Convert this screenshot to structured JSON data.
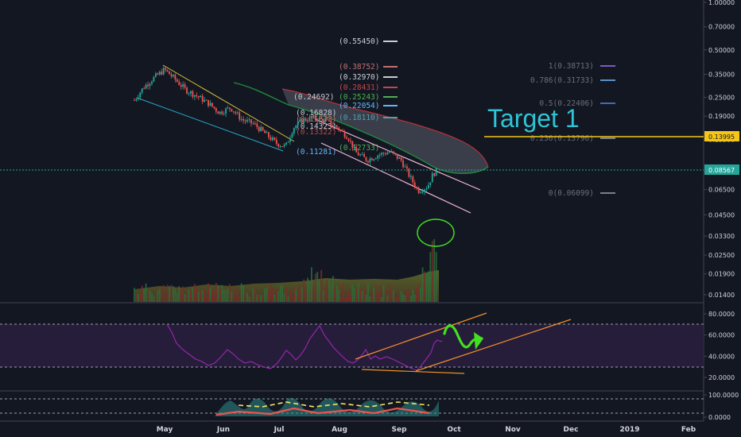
{
  "chart_data": [
    {
      "type": "candlestick",
      "title": "",
      "ylabel": "",
      "yscale": "log",
      "ylim": [
        0.0135,
        1.0
      ],
      "y_ticks": [
        "1.00000",
        "0.70000",
        "0.50000",
        "0.35000",
        "0.25000",
        "0.19000",
        "0.13500",
        "0.08567",
        "0.06500",
        "0.04500",
        "0.03300",
        "0.02500",
        "0.01900",
        "0.01400"
      ],
      "x_ticks": [
        "May",
        "Jun",
        "Jul",
        "Aug",
        "Sep",
        "Oct",
        "Nov",
        "Dec",
        "2019",
        "Feb"
      ],
      "price_path": [
        [
          "2018-04-15",
          0.24
        ],
        [
          "2018-04-20",
          0.29
        ],
        [
          "2018-04-25",
          0.33
        ],
        [
          "2018-05-01",
          0.375
        ],
        [
          "2018-05-06",
          0.33
        ],
        [
          "2018-05-12",
          0.28
        ],
        [
          "2018-05-18",
          0.255
        ],
        [
          "2018-05-24",
          0.23
        ],
        [
          "2018-05-30",
          0.2
        ],
        [
          "2018-06-05",
          0.215
        ],
        [
          "2018-06-11",
          0.18
        ],
        [
          "2018-06-17",
          0.17
        ],
        [
          "2018-06-23",
          0.148
        ],
        [
          "2018-06-29",
          0.128
        ],
        [
          "2018-07-04",
          0.122
        ],
        [
          "2018-07-08",
          0.16
        ],
        [
          "2018-07-13",
          0.18
        ],
        [
          "2018-07-19",
          0.185
        ],
        [
          "2018-07-25",
          0.178
        ],
        [
          "2018-07-31",
          0.162
        ],
        [
          "2018-08-06",
          0.14
        ],
        [
          "2018-08-10",
          0.112
        ],
        [
          "2018-08-16",
          0.1
        ],
        [
          "2018-08-22",
          0.108
        ],
        [
          "2018-08-28",
          0.113
        ],
        [
          "2018-09-03",
          0.1
        ],
        [
          "2018-09-08",
          0.077
        ],
        [
          "2018-09-12",
          0.064
        ],
        [
          "2018-09-17",
          0.068
        ],
        [
          "2018-09-20",
          0.082
        ],
        [
          "2018-09-22",
          0.0857
        ]
      ],
      "last_price": "0.08567",
      "target_price": "0.13995",
      "fib_left": [
        "(0.55450)",
        "(0.38752)",
        "(0.32970)",
        "(0.28431)",
        "(0.25243)",
        "(0.24692)",
        "(0.22054)",
        "(0.18110)",
        "(0.16828)",
        "(0.15833)",
        "(0.14323)",
        "(0.13322)",
        "(0.12733)",
        "(0.11281)"
      ],
      "fib_right": [
        "1(0.38713)",
        "0.786(0.31733)",
        "0.5(0.22406)",
        "0.236(0.13796)",
        "0(0.06099)"
      ],
      "annotations": [
        "Target 1"
      ]
    },
    {
      "type": "line",
      "name": "RSI",
      "y_ticks": [
        "80.0000",
        "60.0000",
        "40.0000",
        "20.0000"
      ],
      "ylim": [
        10,
        95
      ],
      "bands": [
        70,
        30
      ]
    },
    {
      "type": "area",
      "name": "Oscillator",
      "y_ticks": [
        "100.0000",
        "0.0000"
      ],
      "ylim": [
        -10,
        115
      ]
    }
  ],
  "colors": {
    "background": "#131722",
    "up": "#26a69a",
    "down": "#ef5350",
    "target_line": "#f5c518",
    "target_text": "#2ec4d6",
    "rsi": "#9c27b0",
    "channel": "#f4b6d2",
    "trend_orange": "#f0902a",
    "hand_green": "#43e01f"
  }
}
